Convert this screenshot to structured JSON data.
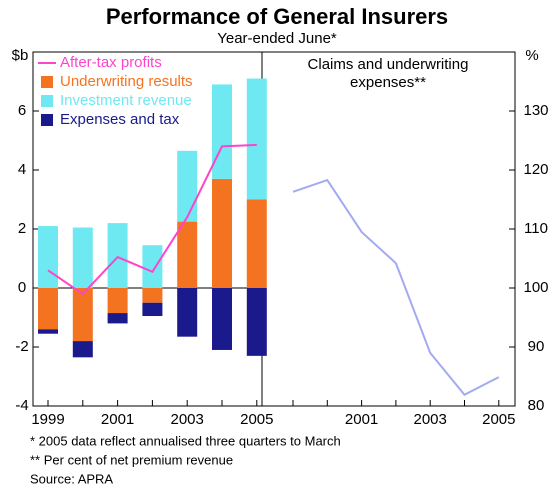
{
  "title": "Performance of General Insurers",
  "subtitle": "Year-ended June*",
  "notes": [
    "*  2005 data reflect annualised three quarters to March",
    "** Per cent of net premium revenue",
    "Source: APRA"
  ],
  "chart_data": [
    {
      "type": "bar",
      "stacked": true,
      "y_label": "$b",
      "categories": [
        "1999",
        null,
        "2001",
        null,
        "2003",
        null,
        "2005"
      ],
      "ylim": [
        -4,
        8
      ],
      "yticks": [
        -4,
        -2,
        0,
        2,
        4,
        6
      ],
      "legend": "top-left",
      "series": [
        {
          "name": "After-tax profits",
          "type": "line",
          "color": "#ff44cc",
          "values": [
            0.6,
            -0.2,
            1.05,
            0.55,
            2.4,
            4.8,
            4.85
          ]
        },
        {
          "name": "Underwriting results",
          "type": "bar",
          "color": "#f47321",
          "values": [
            -1.4,
            -1.8,
            -0.85,
            -0.5,
            2.25,
            3.7,
            3.0
          ]
        },
        {
          "name": "Investment revenue",
          "type": "bar",
          "color": "#6ee9f2",
          "values": [
            2.1,
            2.05,
            2.2,
            1.45,
            2.4,
            3.2,
            4.1
          ]
        },
        {
          "name": "Expenses and tax",
          "type": "bar",
          "color": "#1a1a8c",
          "values": [
            -0.15,
            -0.55,
            -0.35,
            -0.45,
            -1.65,
            -2.1,
            -2.3
          ]
        }
      ]
    },
    {
      "type": "line",
      "title": "Claims and underwriting expenses**",
      "y_label": "%",
      "categories": [
        null,
        null,
        "2001",
        null,
        "2003",
        null,
        "2005"
      ],
      "ylim": [
        80,
        140
      ],
      "yticks": [
        80,
        90,
        100,
        110,
        120,
        130
      ],
      "series": [
        {
          "name": null,
          "color": "#a3aaf2",
          "values": [
            116.3,
            118.3,
            109.5,
            104.2,
            89,
            81.9,
            84.9
          ]
        }
      ]
    }
  ]
}
